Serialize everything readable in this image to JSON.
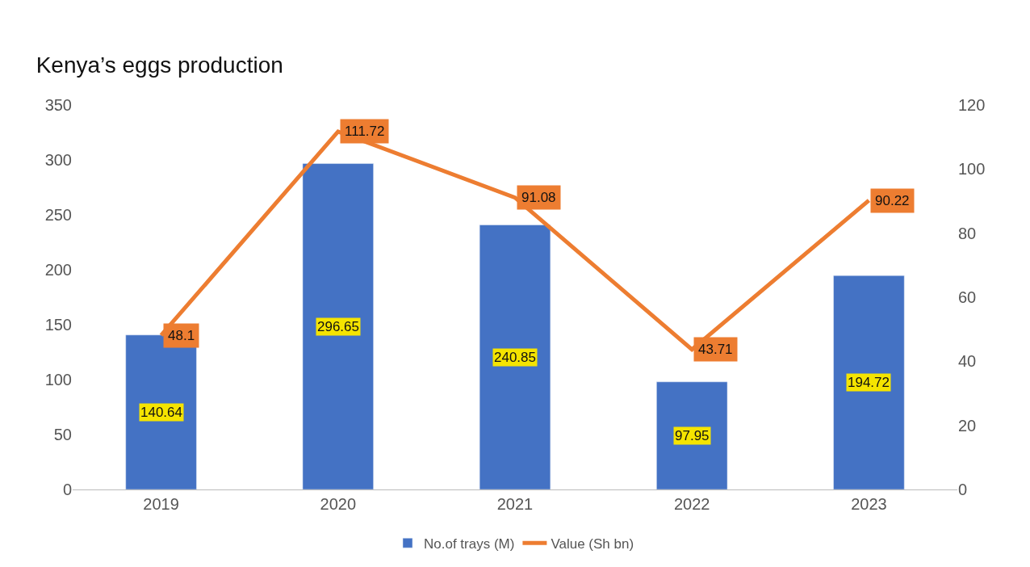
{
  "chart_data": {
    "type": "bar",
    "title": "Kenya’s eggs production",
    "categories": [
      "2019",
      "2020",
      "2021",
      "2022",
      "2023"
    ],
    "series": [
      {
        "name": "No.of trays (M)",
        "color": "#4472c4",
        "values": [
          140.64,
          296.65,
          240.85,
          97.95,
          194.72
        ]
      },
      {
        "name": "Value (Sh bn)",
        "type": "line",
        "axis": "y2",
        "color": "#ed7d31",
        "values": [
          48.1,
          111.72,
          91.08,
          43.71,
          90.22
        ]
      }
    ],
    "ylim": [
      0,
      350
    ],
    "yticks": [
      0,
      50,
      100,
      150,
      200,
      250,
      300,
      350
    ],
    "y2lim": [
      0,
      120
    ],
    "y2ticks": [
      0,
      20,
      40,
      60,
      80,
      100,
      120
    ],
    "data_labels": true,
    "legend": "bottom",
    "marker": "none",
    "line_style": "solid"
  }
}
